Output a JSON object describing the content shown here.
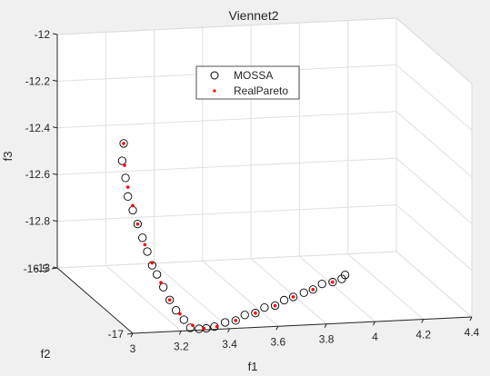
{
  "chart_data": {
    "type": "scatter",
    "projection": "3d",
    "title": "Viennet2",
    "xlabel": "f1",
    "ylabel": "f2",
    "zlabel": "f3",
    "xlim": [
      3,
      4.4
    ],
    "ylim": [
      -17,
      -16.5
    ],
    "zlim": [
      -13,
      -12
    ],
    "xticks": [
      "3",
      "3.2",
      "3.4",
      "3.6",
      "3.8",
      "4",
      "4.2",
      "4.4"
    ],
    "yticks": [
      "-16.5",
      "-17"
    ],
    "zticks": [
      "-12",
      "-12.2",
      "-12.4",
      "-12.6",
      "-12.8",
      "-13"
    ],
    "grid": true,
    "legend": {
      "position": "top-center",
      "entries": [
        {
          "name": "MOSSA",
          "marker": "circle",
          "color": "#000000"
        },
        {
          "name": "RealPareto",
          "marker": "dot",
          "color": "#ff0000"
        }
      ]
    },
    "series": [
      {
        "name": "MOSSA",
        "marker": "circle",
        "color": "#000000",
        "points": [
          [
            3.0,
            -16.94,
            -12.22
          ],
          [
            3.0,
            -16.93,
            -12.3
          ],
          [
            3.02,
            -16.92,
            -12.38
          ],
          [
            3.03,
            -16.92,
            -12.46
          ],
          [
            3.05,
            -16.92,
            -12.52
          ],
          [
            3.07,
            -16.92,
            -12.58
          ],
          [
            3.09,
            -16.92,
            -12.64
          ],
          [
            3.11,
            -16.92,
            -12.7
          ],
          [
            3.13,
            -16.92,
            -12.76
          ],
          [
            3.15,
            -16.92,
            -12.8
          ],
          [
            3.17,
            -16.93,
            -12.85
          ],
          [
            3.19,
            -16.94,
            -12.9
          ],
          [
            3.21,
            -16.95,
            -12.94
          ],
          [
            3.23,
            -16.97,
            -12.97
          ],
          [
            3.25,
            -16.98,
            -13.0
          ],
          [
            3.28,
            -16.99,
            -13.0
          ],
          [
            3.31,
            -16.99,
            -13.0
          ],
          [
            3.35,
            -16.98,
            -13.0
          ],
          [
            3.4,
            -16.97,
            -12.99
          ],
          [
            3.45,
            -16.96,
            -12.99
          ],
          [
            3.5,
            -16.94,
            -12.98
          ],
          [
            3.55,
            -16.93,
            -12.98
          ],
          [
            3.6,
            -16.91,
            -12.97
          ],
          [
            3.65,
            -16.9,
            -12.97
          ],
          [
            3.7,
            -16.88,
            -12.96
          ],
          [
            3.75,
            -16.86,
            -12.96
          ],
          [
            3.8,
            -16.85,
            -12.95
          ],
          [
            3.85,
            -16.83,
            -12.95
          ],
          [
            3.9,
            -16.81,
            -12.94
          ],
          [
            3.95,
            -16.8,
            -12.94
          ],
          [
            4.0,
            -16.78,
            -12.94
          ],
          [
            4.02,
            -16.77,
            -12.93
          ]
        ]
      },
      {
        "name": "RealPareto",
        "marker": "dot",
        "color": "#ff0000",
        "points": [
          [
            3.0,
            -16.94,
            -12.22
          ],
          [
            3.01,
            -16.93,
            -12.32
          ],
          [
            3.03,
            -16.92,
            -12.42
          ],
          [
            3.05,
            -16.92,
            -12.5
          ],
          [
            3.07,
            -16.92,
            -12.58
          ],
          [
            3.1,
            -16.92,
            -12.67
          ],
          [
            3.13,
            -16.92,
            -12.75
          ],
          [
            3.16,
            -16.93,
            -12.83
          ],
          [
            3.19,
            -16.94,
            -12.9
          ],
          [
            3.22,
            -16.96,
            -12.95
          ],
          [
            3.26,
            -16.98,
            -12.99
          ],
          [
            3.3,
            -16.99,
            -13.0
          ],
          [
            3.36,
            -16.98,
            -13.0
          ],
          [
            3.45,
            -16.96,
            -12.99
          ],
          [
            3.55,
            -16.93,
            -12.98
          ],
          [
            3.65,
            -16.9,
            -12.97
          ],
          [
            3.75,
            -16.86,
            -12.96
          ],
          [
            3.85,
            -16.83,
            -12.95
          ],
          [
            3.95,
            -16.8,
            -12.94
          ]
        ]
      }
    ]
  }
}
